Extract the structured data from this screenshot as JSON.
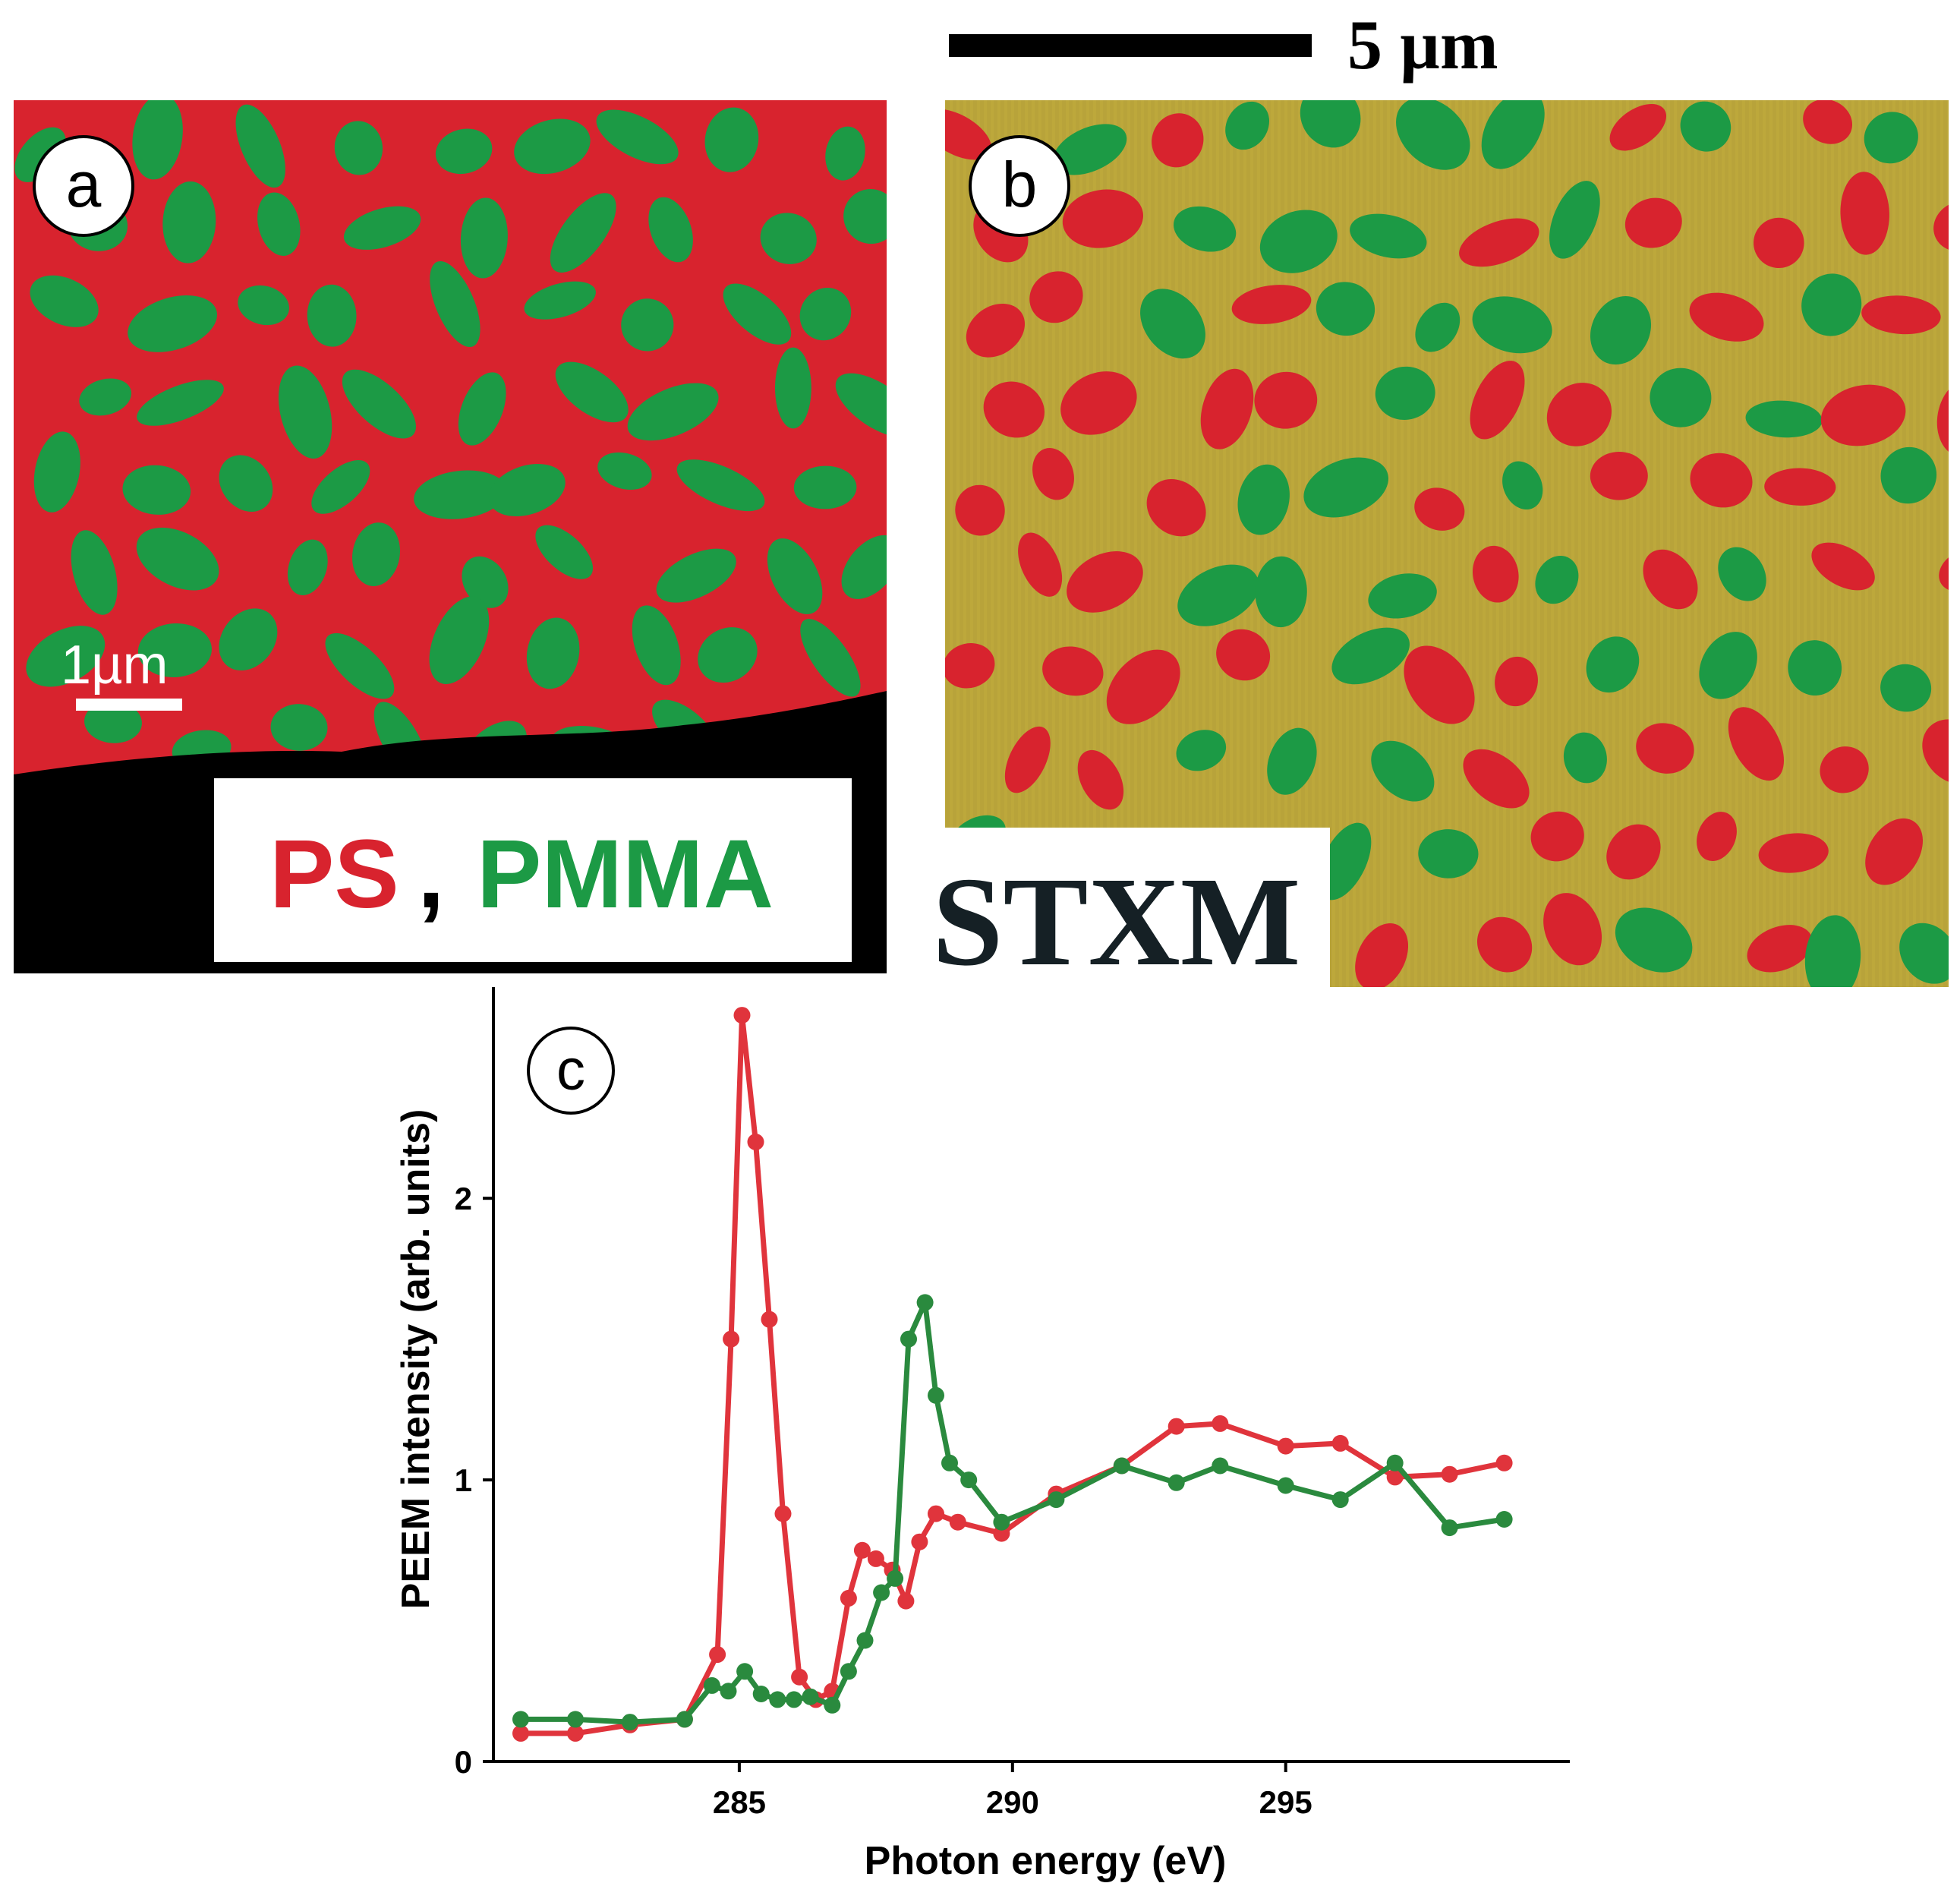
{
  "panel_a": {
    "label": "a",
    "scale_label": "1µm",
    "legend": {
      "ps": "PS",
      "sep": ",",
      "pmma": "PMMA"
    }
  },
  "panel_b": {
    "label": "b",
    "scale_label": "5 µm",
    "method": "STXM"
  },
  "colors": {
    "ps": "#d8232e",
    "pmma": "#1c9a45",
    "mix": "#b8a33a",
    "black": "#000000"
  },
  "chart_data": {
    "type": "line",
    "panel_label": "c",
    "xlabel": "Photon energy (eV)",
    "ylabel": "PEEM intensity (arb. units)",
    "xlim": [
      280.5,
      300.2
    ],
    "ylim": [
      0,
      2.75
    ],
    "x_ticks": [
      285,
      290,
      295
    ],
    "y_ticks": [
      0,
      1,
      2
    ],
    "series": [
      {
        "color": "#e0343c",
        "x": [
          281,
          282,
          283,
          284,
          284.6,
          284.85,
          285.05,
          285.3,
          285.55,
          285.8,
          286.1,
          286.4,
          286.7,
          287.0,
          287.25,
          287.5,
          287.8,
          288.05,
          288.3,
          288.6,
          289,
          289.8,
          290.8,
          292,
          293,
          293.8,
          295,
          296,
          297,
          298,
          299
        ],
        "y": [
          0.1,
          0.1,
          0.13,
          0.15,
          0.38,
          1.5,
          2.65,
          2.2,
          1.57,
          0.88,
          0.3,
          0.22,
          0.25,
          0.58,
          0.75,
          0.72,
          0.68,
          0.57,
          0.78,
          0.88,
          0.85,
          0.81,
          0.95,
          1.05,
          1.19,
          1.2,
          1.12,
          1.13,
          1.01,
          1.02,
          1.06
        ]
      },
      {
        "color": "#2a8a3e",
        "x": [
          281,
          282,
          283,
          284,
          284.5,
          284.8,
          285.1,
          285.4,
          285.7,
          286.0,
          286.3,
          286.7,
          287.0,
          287.3,
          287.6,
          287.85,
          288.1,
          288.4,
          288.6,
          288.85,
          289.2,
          289.8,
          290.8,
          292,
          293,
          293.8,
          295,
          296,
          297,
          298,
          299
        ],
        "y": [
          0.15,
          0.15,
          0.14,
          0.15,
          0.27,
          0.25,
          0.32,
          0.24,
          0.22,
          0.22,
          0.23,
          0.2,
          0.32,
          0.43,
          0.6,
          0.65,
          1.5,
          1.63,
          1.3,
          1.06,
          1.0,
          0.85,
          0.93,
          1.05,
          0.99,
          1.05,
          0.98,
          0.93,
          1.06,
          0.83,
          0.86
        ]
      }
    ]
  }
}
